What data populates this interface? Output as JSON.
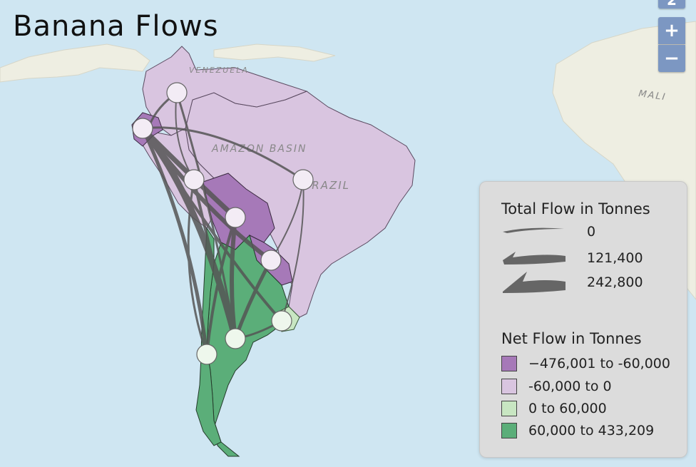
{
  "title": "Banana Flows",
  "map_labels": [
    "VENEZUELA",
    "AMAZON BASIN",
    "BRAZIL",
    "MALI"
  ],
  "zoom": {
    "top_label": "2",
    "in_label": "+",
    "out_label": "−"
  },
  "legend": {
    "total_title": "Total Flow in Tonnes",
    "total_items": [
      "0",
      "121,400",
      "242,800"
    ],
    "net_title": "Net Flow in Tonnes",
    "net_items": [
      {
        "label": "−476,001 to -60,000",
        "color": "#a679b8"
      },
      {
        "label": "-60,000 to 0",
        "color": "#d9c5e0"
      },
      {
        "label": "0 to 60,000",
        "color": "#c8e6c2"
      },
      {
        "label": "60,000 to 433,209",
        "color": "#5bae79"
      }
    ]
  },
  "colors": {
    "ocean": "#cfe6f2",
    "land_bg": "#efefe4",
    "flow": "#555555"
  }
}
